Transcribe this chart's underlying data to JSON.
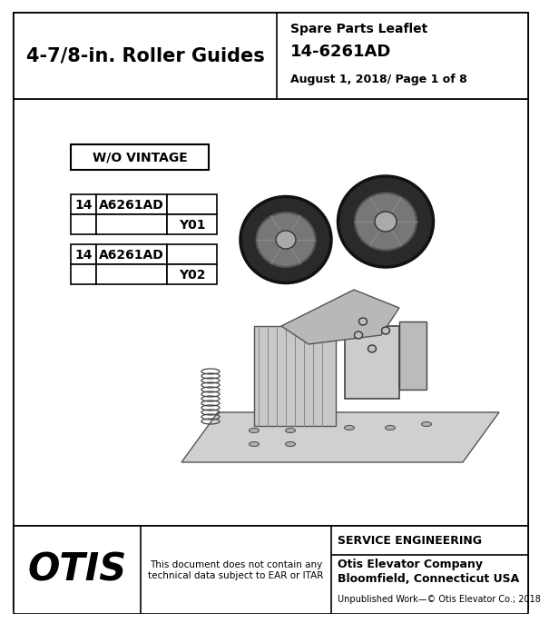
{
  "header_left_text": "4-7/8-in. Roller Guides",
  "header_right_line1": "Spare Parts Leaflet",
  "header_right_line2": "14-6261AD",
  "header_right_line3": "August 1, 2018/ Page 1 of 8",
  "wo_vintage_label": "W/O VINTAGE",
  "table1_col1": "14",
  "table1_col2": "A6261AD",
  "table1_col3": "Y01",
  "table2_col1": "14",
  "table2_col2": "A6261AD",
  "table2_col3": "Y02",
  "footer_logo": "OTIS",
  "footer_disclaimer": "This document does not contain any\ntechnical data subject to EAR or ITAR",
  "footer_se_line1": "SERVICE ENGINEERING",
  "footer_se_line2": "Otis Elevator Company",
  "footer_se_line3": "Bloomfield, Connecticut USA",
  "footer_unpublished": "Unpublished Work—© Otis Elevator Co.; 2018",
  "border_color": "#000000",
  "bg_color": "#ffffff",
  "text_color": "#000000",
  "header_bg": "#ffffff",
  "body_bg": "#ffffff"
}
